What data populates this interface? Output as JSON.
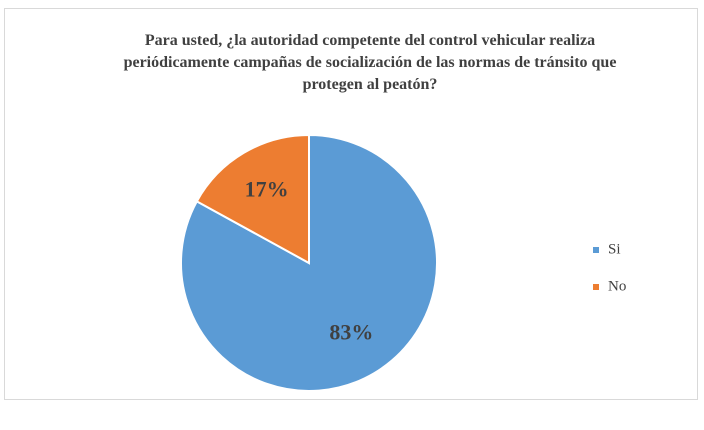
{
  "chart_data": {
    "type": "pie",
    "title": "Para usted, ¿la autoridad competente del control vehicular realiza periódicamente campañas de socialización de las normas de tránsito que protegen al peatón?",
    "categories": [
      "Si",
      "No"
    ],
    "values": [
      83,
      17
    ],
    "value_labels": [
      "83%",
      "17%"
    ],
    "colors": [
      "#5b9bd5",
      "#ed7d31"
    ],
    "legend": "right"
  }
}
